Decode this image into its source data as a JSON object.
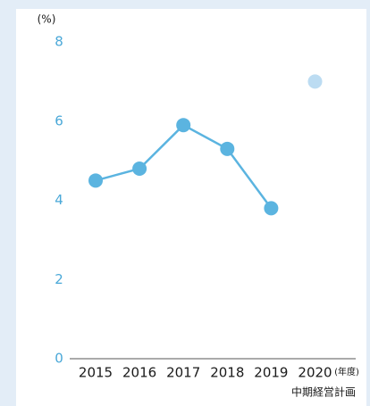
{
  "chart_data": {
    "type": "line",
    "y_label": "(%)",
    "x_label": "(年度)",
    "annotation": "中期経営計画",
    "categories": [
      "2015",
      "2016",
      "2017",
      "2018",
      "2019",
      "2020"
    ],
    "series": [
      {
        "color": "#5bb4e0",
        "values": [
          4.5,
          4.8,
          5.9,
          5.3,
          3.8,
          null
        ]
      },
      {
        "color": "#bcdcf2",
        "values": [
          null,
          null,
          null,
          null,
          null,
          7.0
        ]
      }
    ],
    "data_labels": [
      [
        1,
        4
      ],
      [
        5,
        5
      ]
    ],
    "ylim": [
      0,
      8
    ],
    "yticks": [
      0,
      2,
      4,
      6,
      8
    ],
    "grid": false
  }
}
